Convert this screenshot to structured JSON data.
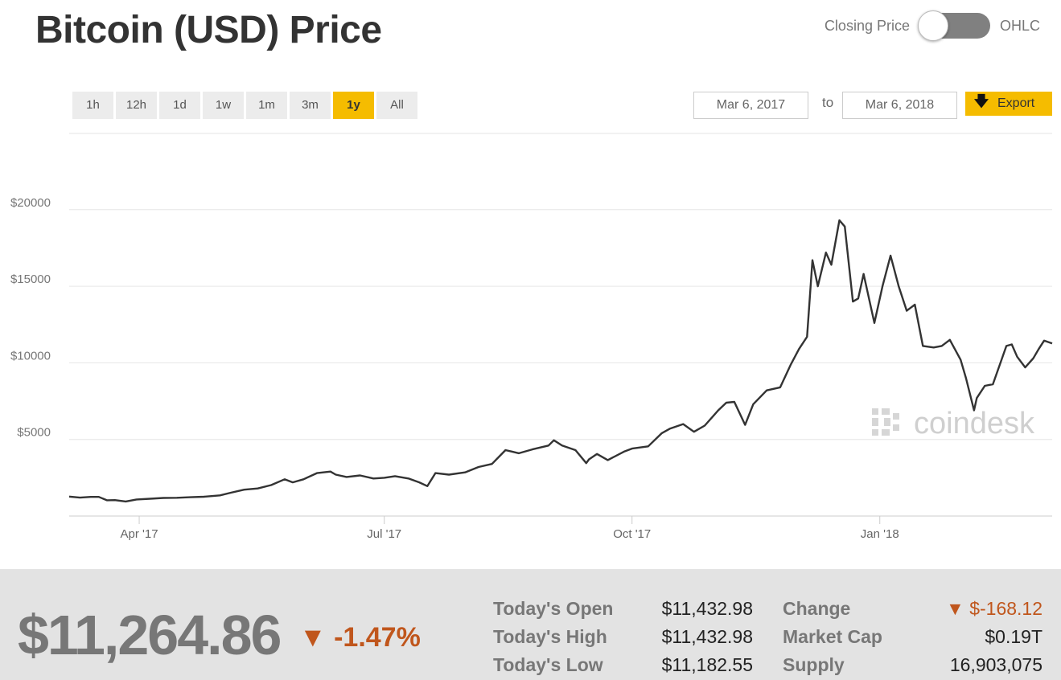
{
  "header": {
    "title": "Bitcoin (USD) Price",
    "toggle_left": "Closing Price",
    "toggle_right": "OHLC"
  },
  "range_buttons": [
    "1h",
    "12h",
    "1d",
    "1w",
    "1m",
    "3m",
    "1y",
    "All"
  ],
  "active_range": "1y",
  "date_range": {
    "from": "Mar 6, 2017",
    "to_label": "to",
    "to": "Mar 6, 2018"
  },
  "export_label": "Export",
  "watermark": "coindesk",
  "chart_data": {
    "type": "line",
    "title": "",
    "xlabel": "",
    "ylabel": "",
    "ylim": [
      0,
      20000
    ],
    "y_ticks": [
      5000,
      10000,
      15000,
      20000
    ],
    "y_tick_labels": [
      "$5000",
      "$10000",
      "$15000",
      "$20000"
    ],
    "x_tick_labels": [
      "Apr '17",
      "Jul '17",
      "Oct '17",
      "Jan '18"
    ],
    "x_tick_dates": [
      "2017-04-01",
      "2017-07-01",
      "2017-10-01",
      "2018-01-01"
    ],
    "xlim": [
      "2017-03-06",
      "2018-03-06"
    ],
    "grid": true,
    "series": [
      {
        "color": "#333333",
        "points": [
          [
            "2017-03-06",
            1270
          ],
          [
            "2017-03-10",
            1200
          ],
          [
            "2017-03-14",
            1250
          ],
          [
            "2017-03-17",
            1250
          ],
          [
            "2017-03-20",
            1030
          ],
          [
            "2017-03-23",
            1040
          ],
          [
            "2017-03-27",
            950
          ],
          [
            "2017-03-31",
            1080
          ],
          [
            "2017-04-05",
            1130
          ],
          [
            "2017-04-10",
            1180
          ],
          [
            "2017-04-15",
            1190
          ],
          [
            "2017-04-20",
            1230
          ],
          [
            "2017-04-25",
            1260
          ],
          [
            "2017-05-01",
            1350
          ],
          [
            "2017-05-05",
            1520
          ],
          [
            "2017-05-10",
            1720
          ],
          [
            "2017-05-15",
            1800
          ],
          [
            "2017-05-20",
            2020
          ],
          [
            "2017-05-25",
            2400
          ],
          [
            "2017-05-28",
            2200
          ],
          [
            "2017-06-01",
            2400
          ],
          [
            "2017-06-06",
            2800
          ],
          [
            "2017-06-11",
            2900
          ],
          [
            "2017-06-13",
            2700
          ],
          [
            "2017-06-17",
            2550
          ],
          [
            "2017-06-22",
            2650
          ],
          [
            "2017-06-27",
            2450
          ],
          [
            "2017-07-01",
            2500
          ],
          [
            "2017-07-05",
            2600
          ],
          [
            "2017-07-10",
            2450
          ],
          [
            "2017-07-14",
            2200
          ],
          [
            "2017-07-17",
            1950
          ],
          [
            "2017-07-20",
            2800
          ],
          [
            "2017-07-25",
            2700
          ],
          [
            "2017-07-31",
            2850
          ],
          [
            "2017-08-05",
            3200
          ],
          [
            "2017-08-10",
            3400
          ],
          [
            "2017-08-15",
            4300
          ],
          [
            "2017-08-20",
            4100
          ],
          [
            "2017-08-25",
            4350
          ],
          [
            "2017-08-31",
            4600
          ],
          [
            "2017-09-02",
            4950
          ],
          [
            "2017-09-05",
            4600
          ],
          [
            "2017-09-10",
            4300
          ],
          [
            "2017-09-14",
            3450
          ],
          [
            "2017-09-15",
            3700
          ],
          [
            "2017-09-18",
            4050
          ],
          [
            "2017-09-22",
            3650
          ],
          [
            "2017-09-28",
            4200
          ],
          [
            "2017-10-01",
            4400
          ],
          [
            "2017-10-07",
            4550
          ],
          [
            "2017-10-12",
            5400
          ],
          [
            "2017-10-15",
            5700
          ],
          [
            "2017-10-20",
            6000
          ],
          [
            "2017-10-24",
            5500
          ],
          [
            "2017-10-28",
            5900
          ],
          [
            "2017-11-02",
            6900
          ],
          [
            "2017-11-05",
            7400
          ],
          [
            "2017-11-08",
            7450
          ],
          [
            "2017-11-12",
            5950
          ],
          [
            "2017-11-15",
            7300
          ],
          [
            "2017-11-20",
            8200
          ],
          [
            "2017-11-25",
            8400
          ],
          [
            "2017-11-29",
            9900
          ],
          [
            "2017-12-02",
            10900
          ],
          [
            "2017-12-05",
            11700
          ],
          [
            "2017-12-07",
            16700
          ],
          [
            "2017-12-09",
            15000
          ],
          [
            "2017-12-12",
            17200
          ],
          [
            "2017-12-14",
            16400
          ],
          [
            "2017-12-17",
            19300
          ],
          [
            "2017-12-19",
            18900
          ],
          [
            "2017-12-22",
            14000
          ],
          [
            "2017-12-24",
            14200
          ],
          [
            "2017-12-26",
            15800
          ],
          [
            "2017-12-30",
            12600
          ],
          [
            "2018-01-02",
            15000
          ],
          [
            "2018-01-05",
            17000
          ],
          [
            "2018-01-08",
            15000
          ],
          [
            "2018-01-11",
            13400
          ],
          [
            "2018-01-14",
            13800
          ],
          [
            "2018-01-17",
            11100
          ],
          [
            "2018-01-21",
            11000
          ],
          [
            "2018-01-24",
            11100
          ],
          [
            "2018-01-27",
            11500
          ],
          [
            "2018-01-31",
            10200
          ],
          [
            "2018-02-02",
            9000
          ],
          [
            "2018-02-05",
            6900
          ],
          [
            "2018-02-06",
            7700
          ],
          [
            "2018-02-09",
            8500
          ],
          [
            "2018-02-12",
            8600
          ],
          [
            "2018-02-15",
            10100
          ],
          [
            "2018-02-17",
            11100
          ],
          [
            "2018-02-19",
            11200
          ],
          [
            "2018-02-21",
            10400
          ],
          [
            "2018-02-24",
            9700
          ],
          [
            "2018-02-27",
            10300
          ],
          [
            "2018-03-01",
            10900
          ],
          [
            "2018-03-03",
            11450
          ],
          [
            "2018-03-06",
            11264
          ]
        ]
      }
    ]
  },
  "footer": {
    "price": "$11,264.86",
    "change_pct": "▼ -1.47%",
    "stats_left": [
      {
        "label": "Today's Open",
        "value": "$11,432.98"
      },
      {
        "label": "Today's High",
        "value": "$11,432.98"
      },
      {
        "label": "Today's Low",
        "value": "$11,182.55"
      }
    ],
    "stats_right": [
      {
        "label": "Change",
        "value": "▼ $-168.12"
      },
      {
        "label": "Market Cap",
        "value": "$0.19T"
      },
      {
        "label": "Supply",
        "value": "16,903,075"
      }
    ],
    "negative_color": "#c0561c"
  }
}
